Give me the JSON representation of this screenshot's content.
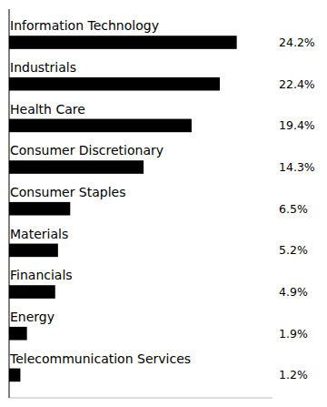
{
  "chart_data": {
    "type": "bar",
    "orientation": "horizontal",
    "categories": [
      "Telecommunication Services",
      "Energy",
      "Financials",
      "Materials",
      "Consumer Staples",
      "Consumer Discretionary",
      "Health Care",
      "Industrials",
      "Information Technology"
    ],
    "values": [
      1.2,
      1.9,
      4.9,
      5.2,
      6.5,
      14.3,
      19.4,
      22.4,
      24.2
    ],
    "value_labels": [
      "1.2%",
      "1.9%",
      "4.9%",
      "5.2%",
      "6.5%",
      "14.3%",
      "19.4%",
      "22.4%",
      "24.2%"
    ],
    "data_labels": true,
    "color": "#000000",
    "xlim": [
      0,
      28
    ],
    "tick_labels": false
  }
}
